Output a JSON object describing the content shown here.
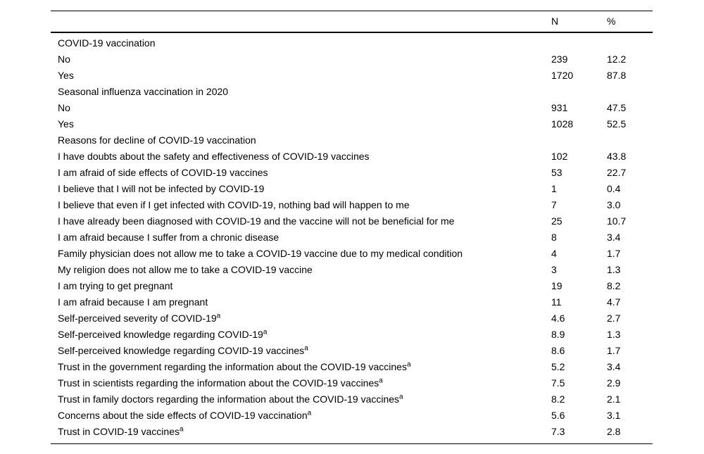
{
  "table": {
    "columns": {
      "label": "",
      "n": "N",
      "pct": "%"
    },
    "footnote_marker": "a",
    "rows": [
      {
        "label": "COVID-19 vaccination",
        "n": "",
        "pct": ""
      },
      {
        "label": "No",
        "n": "239",
        "pct": "12.2"
      },
      {
        "label": "Yes",
        "n": "1720",
        "pct": "87.8"
      },
      {
        "label": "Seasonal influenza vaccination in 2020",
        "n": "",
        "pct": ""
      },
      {
        "label": "No",
        "n": "931",
        "pct": "47.5"
      },
      {
        "label": "Yes",
        "n": "1028",
        "pct": "52.5"
      },
      {
        "label": "Reasons for decline of COVID-19 vaccination",
        "n": "",
        "pct": ""
      },
      {
        "label": "I have doubts about the safety and effectiveness of COVID-19 vaccines",
        "n": "102",
        "pct": "43.8"
      },
      {
        "label": "I am afraid of side effects of COVID-19 vaccines",
        "n": "53",
        "pct": "22.7"
      },
      {
        "label": "I believe that I will not be infected by COVID-19",
        "n": "1",
        "pct": "0.4"
      },
      {
        "label": "I believe that even if I get infected with COVID-19, nothing bad will happen to me",
        "n": "7",
        "pct": "3.0"
      },
      {
        "label": "I have already been diagnosed with COVID-19 and the vaccine will not be beneficial for me",
        "n": "25",
        "pct": "10.7"
      },
      {
        "label": "I am afraid because I suffer from a chronic disease",
        "n": "8",
        "pct": "3.4"
      },
      {
        "label": "Family physician does not allow me to take a COVID-19 vaccine due to my medical condition",
        "n": "4",
        "pct": "1.7"
      },
      {
        "label": "My religion does not allow me to take a COVID-19 vaccine",
        "n": "3",
        "pct": "1.3"
      },
      {
        "label": "I am trying to get pregnant",
        "n": "19",
        "pct": "8.2"
      },
      {
        "label": "I am afraid because I am pregnant",
        "n": "11",
        "pct": "4.7"
      },
      {
        "label": "Self-perceived severity of COVID-19",
        "sup": "a",
        "n": "4.6",
        "pct": "2.7"
      },
      {
        "label": "Self-perceived knowledge regarding COVID-19",
        "sup": "a",
        "n": "8.9",
        "pct": "1.3"
      },
      {
        "label": "Self-perceived knowledge regarding COVID-19 vaccines",
        "sup": "a",
        "n": "8.6",
        "pct": "1.7"
      },
      {
        "label": "Trust in the government regarding the information about the COVID-19 vaccines",
        "sup": "a",
        "n": "5.2",
        "pct": "3.4"
      },
      {
        "label": "Trust in scientists regarding the information about the COVID-19 vaccines",
        "sup": "a",
        "n": "7.5",
        "pct": "2.9"
      },
      {
        "label": "Trust in family doctors regarding the information about the COVID-19 vaccines",
        "sup": "a",
        "n": "8.2",
        "pct": "2.1"
      },
      {
        "label": "Concerns about the side effects of COVID-19 vaccination",
        "sup": "a",
        "n": "5.6",
        "pct": "3.1"
      },
      {
        "label": "Trust in COVID-19 vaccines",
        "sup": "a",
        "n": "7.3",
        "pct": "2.8"
      }
    ]
  },
  "colors": {
    "text": "#000000",
    "background": "#ffffff",
    "rule": "#000000"
  }
}
